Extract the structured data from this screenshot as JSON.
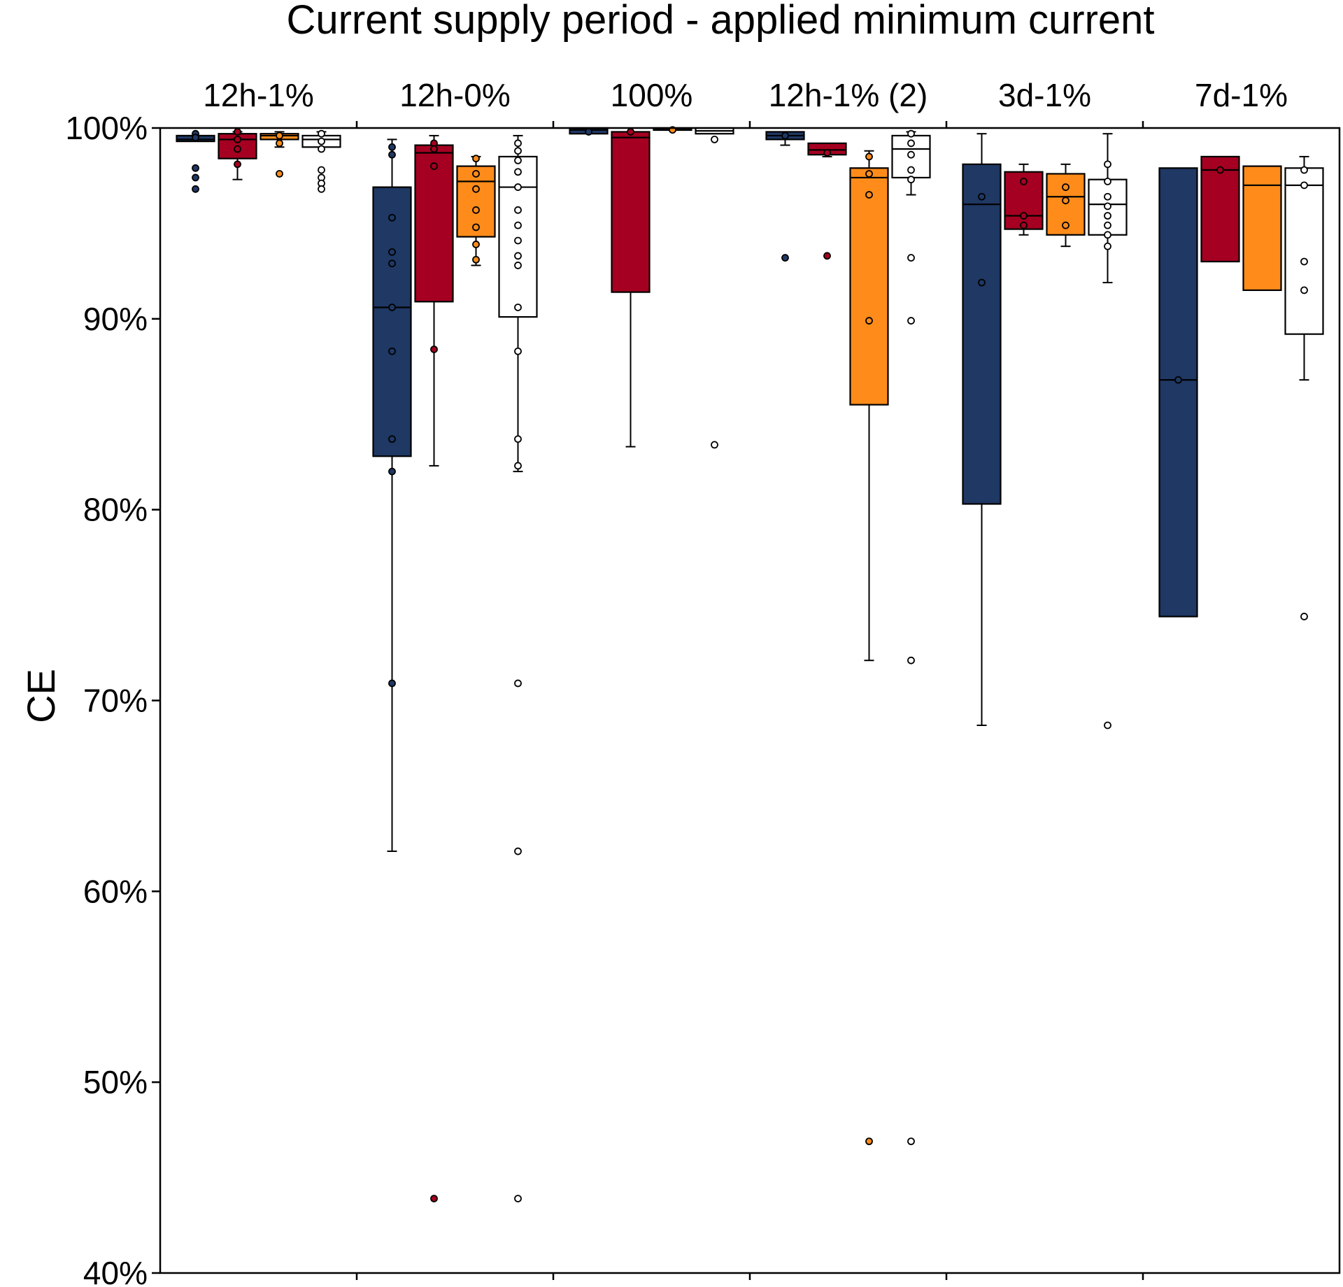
{
  "chart_data": {
    "type": "box",
    "title": "Current supply period - applied minimum current",
    "xlabel": "",
    "ylabel": "CE",
    "ylim": [
      40,
      100
    ],
    "yticks": [
      40,
      50,
      60,
      70,
      80,
      90,
      100
    ],
    "ytick_labels": [
      "40%",
      "50%",
      "60%",
      "70%",
      "80%",
      "90%",
      "100%"
    ],
    "grid": false,
    "colors": [
      "#1f3864",
      "#a50021",
      "#ff8c1a",
      "#ffffff"
    ],
    "categories": [
      "12h-1%",
      "12h-0%",
      "100%",
      "12h-1% (2)",
      "3d-1%",
      "7d-1%"
    ],
    "groups": [
      {
        "label": "12h-1%",
        "boxes": [
          {
            "q1": 99.3,
            "median": 99.4,
            "q3": 99.6,
            "whislo": 99.3,
            "whishi": 99.6,
            "points": [
              99.7,
              99.5,
              97.9,
              97.4,
              96.8
            ]
          },
          {
            "q1": 98.4,
            "median": 99.4,
            "q3": 99.7,
            "whislo": 97.3,
            "whishi": 99.8,
            "points": [
              99.8,
              99.4,
              98.9,
              98.1
            ]
          },
          {
            "q1": 99.4,
            "median": 99.6,
            "q3": 99.7,
            "whislo": 99.0,
            "whishi": 99.8,
            "points": [
              99.6,
              99.2,
              97.6
            ]
          },
          {
            "q1": 99.0,
            "median": 99.4,
            "q3": 99.6,
            "whislo": 99.0,
            "whishi": 99.8,
            "points": [
              99.7,
              99.3,
              98.9,
              97.8,
              97.4,
              97.1,
              96.8
            ]
          }
        ]
      },
      {
        "label": "12h-0%",
        "boxes": [
          {
            "q1": 82.8,
            "median": 90.6,
            "q3": 96.9,
            "whislo": 62.1,
            "whishi": 99.4,
            "points": [
              99.0,
              98.6,
              95.3,
              93.5,
              92.9,
              90.6,
              88.3,
              83.7,
              82.0,
              70.9
            ]
          },
          {
            "q1": 90.9,
            "median": 98.7,
            "q3": 99.1,
            "whislo": 82.3,
            "whishi": 99.6,
            "points": [
              99.2,
              98.9,
              98.0,
              88.4,
              43.9
            ]
          },
          {
            "q1": 94.3,
            "median": 97.2,
            "q3": 98.0,
            "whislo": 92.8,
            "whishi": 98.5,
            "points": [
              98.4,
              97.6,
              96.8,
              95.7,
              94.8,
              93.9,
              93.1
            ]
          },
          {
            "q1": 90.1,
            "median": 96.9,
            "q3": 98.5,
            "whislo": 82.0,
            "whishi": 99.6,
            "points": [
              99.2,
              98.8,
              98.3,
              97.7,
              96.9,
              95.7,
              94.9,
              94.1,
              93.3,
              92.8,
              90.6,
              88.3,
              83.7,
              82.3,
              70.9,
              62.1,
              43.9
            ]
          }
        ]
      },
      {
        "label": "100%",
        "boxes": [
          {
            "q1": 99.7,
            "median": 99.9,
            "q3": 100.0,
            "whislo": 99.7,
            "whishi": 100.0,
            "points": [
              99.8
            ]
          },
          {
            "q1": 91.4,
            "median": 99.5,
            "q3": 99.8,
            "whislo": 83.3,
            "whishi": 99.8,
            "points": [
              99.8
            ]
          },
          {
            "q1": 99.9,
            "median": 99.95,
            "q3": 100.0,
            "whislo": 99.9,
            "whishi": 100.0,
            "points": [
              99.9
            ]
          },
          {
            "q1": 99.7,
            "median": 99.85,
            "q3": 100.0,
            "whislo": 99.7,
            "whishi": 100.0,
            "points": [
              99.4,
              83.4
            ]
          }
        ]
      },
      {
        "label": "12h-1% (2)",
        "boxes": [
          {
            "q1": 99.4,
            "median": 99.6,
            "q3": 99.8,
            "whislo": 99.1,
            "whishi": 99.8,
            "points": [
              99.6,
              93.2
            ]
          },
          {
            "q1": 98.6,
            "median": 98.85,
            "q3": 99.2,
            "whislo": 98.5,
            "whishi": 99.2,
            "points": [
              98.7,
              93.3
            ]
          },
          {
            "q1": 85.5,
            "median": 97.4,
            "q3": 97.9,
            "whislo": 72.1,
            "whishi": 98.8,
            "points": [
              98.5,
              97.6,
              96.5,
              89.9,
              46.9
            ]
          },
          {
            "q1": 97.4,
            "median": 98.9,
            "q3": 99.6,
            "whislo": 96.5,
            "whishi": 99.8,
            "points": [
              99.7,
              99.2,
              98.6,
              97.8,
              97.3,
              93.2,
              89.9,
              72.1,
              46.9
            ]
          }
        ]
      },
      {
        "label": "3d-1%",
        "boxes": [
          {
            "q1": 80.3,
            "median": 96.0,
            "q3": 98.1,
            "whislo": 68.7,
            "whishi": 99.7,
            "points": [
              96.4,
              91.9
            ]
          },
          {
            "q1": 94.7,
            "median": 95.4,
            "q3": 97.7,
            "whislo": 94.4,
            "whishi": 98.1,
            "points": [
              97.2,
              95.4,
              94.9
            ]
          },
          {
            "q1": 94.4,
            "median": 96.4,
            "q3": 97.6,
            "whislo": 93.8,
            "whishi": 98.1,
            "points": [
              96.9,
              96.2,
              94.9
            ]
          },
          {
            "q1": 94.4,
            "median": 96.0,
            "q3": 97.3,
            "whislo": 91.9,
            "whishi": 99.7,
            "points": [
              98.1,
              97.2,
              96.4,
              95.9,
              95.4,
              94.9,
              94.4,
              93.8,
              68.7
            ]
          }
        ]
      },
      {
        "label": "7d-1%",
        "boxes": [
          {
            "q1": 74.4,
            "median": 86.8,
            "q3": 97.9,
            "whislo": 74.4,
            "whishi": 97.9,
            "points": [
              86.8
            ]
          },
          {
            "q1": 93.0,
            "median": 97.8,
            "q3": 98.5,
            "whislo": 93.0,
            "whishi": 98.5,
            "points": [
              97.8
            ]
          },
          {
            "q1": 91.5,
            "median": 97.0,
            "q3": 98.0,
            "whislo": 91.5,
            "whishi": 98.0,
            "points": []
          },
          {
            "q1": 89.2,
            "median": 97.0,
            "q3": 97.9,
            "whislo": 86.8,
            "whishi": 98.5,
            "points": [
              97.8,
              97.0,
              93.0,
              91.5,
              74.4
            ]
          }
        ]
      }
    ]
  }
}
